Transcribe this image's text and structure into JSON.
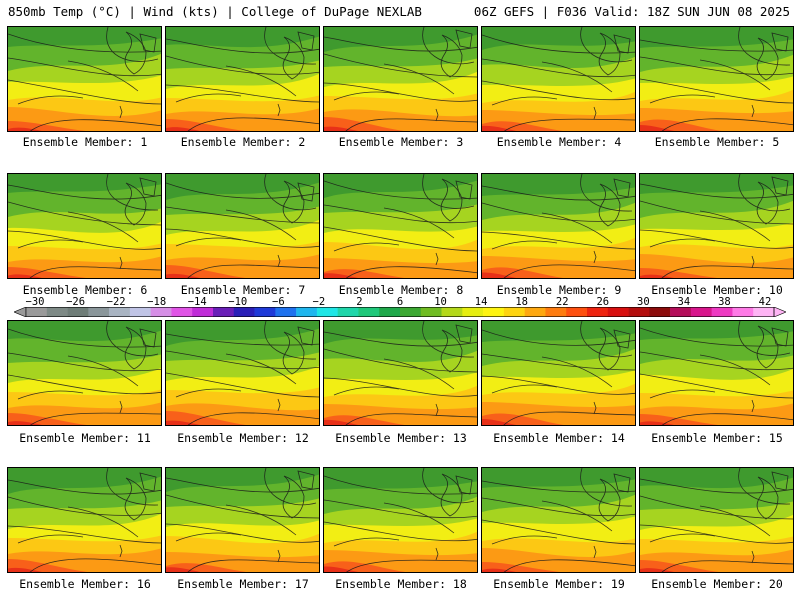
{
  "header": {
    "left": "850mb Temp (°C) | Wind (kts) | College of DuPage NEXLAB",
    "right": "06Z GEFS | F036 Valid: 18Z SUN JUN 08 2025"
  },
  "members": [
    {
      "label": "Ensemble Member: 1"
    },
    {
      "label": "Ensemble Member: 2"
    },
    {
      "label": "Ensemble Member: 3"
    },
    {
      "label": "Ensemble Member: 4"
    },
    {
      "label": "Ensemble Member: 5"
    },
    {
      "label": "Ensemble Member: 6"
    },
    {
      "label": "Ensemble Member: 7"
    },
    {
      "label": "Ensemble Member: 8"
    },
    {
      "label": "Ensemble Member: 9"
    },
    {
      "label": "Ensemble Member: 10"
    },
    {
      "label": "Ensemble Member: 11"
    },
    {
      "label": "Ensemble Member: 12"
    },
    {
      "label": "Ensemble Member: 13"
    },
    {
      "label": "Ensemble Member: 14"
    },
    {
      "label": "Ensemble Member: 15"
    },
    {
      "label": "Ensemble Member: 16"
    },
    {
      "label": "Ensemble Member: 17"
    },
    {
      "label": "Ensemble Member: 18"
    },
    {
      "label": "Ensemble Member: 19"
    },
    {
      "label": "Ensemble Member: 20"
    }
  ],
  "colorbar": {
    "ticks": [
      "-30",
      "-26",
      "-22",
      "-18",
      "-14",
      "-10",
      "-6",
      "-2",
      "2",
      "6",
      "10",
      "14",
      "18",
      "22",
      "26",
      "30",
      "34",
      "38",
      "42"
    ],
    "colors": [
      "#9a9a9a",
      "#7e8a86",
      "#6f7d78",
      "#8a969a",
      "#a9b4c2",
      "#c0c4e6",
      "#d68ee6",
      "#e054e6",
      "#c02cd8",
      "#6a1fb8",
      "#2a1fb8",
      "#1f3ad8",
      "#1f72ee",
      "#1fb6ee",
      "#1ee6e6",
      "#1ed6aa",
      "#1ec87a",
      "#1ea84a",
      "#3ca832",
      "#70bc22",
      "#b4d81a",
      "#e6ee10",
      "#fef410",
      "#fed410",
      "#fea810",
      "#fe7c10",
      "#fe5010",
      "#ee2410",
      "#d81010",
      "#b40e0e",
      "#8c0c0c",
      "#b40e5a",
      "#d8168c",
      "#ee3ac2",
      "#fe7ae6",
      "#feb4f4"
    ]
  },
  "palette": {
    "green_dark": "#3f9a2e",
    "green": "#62b42c",
    "lime": "#a6d420",
    "yellow": "#f2ee14",
    "gold": "#fcc814",
    "orange": "#fc9a14",
    "red_orange": "#f8601a",
    "red": "#e83018"
  }
}
